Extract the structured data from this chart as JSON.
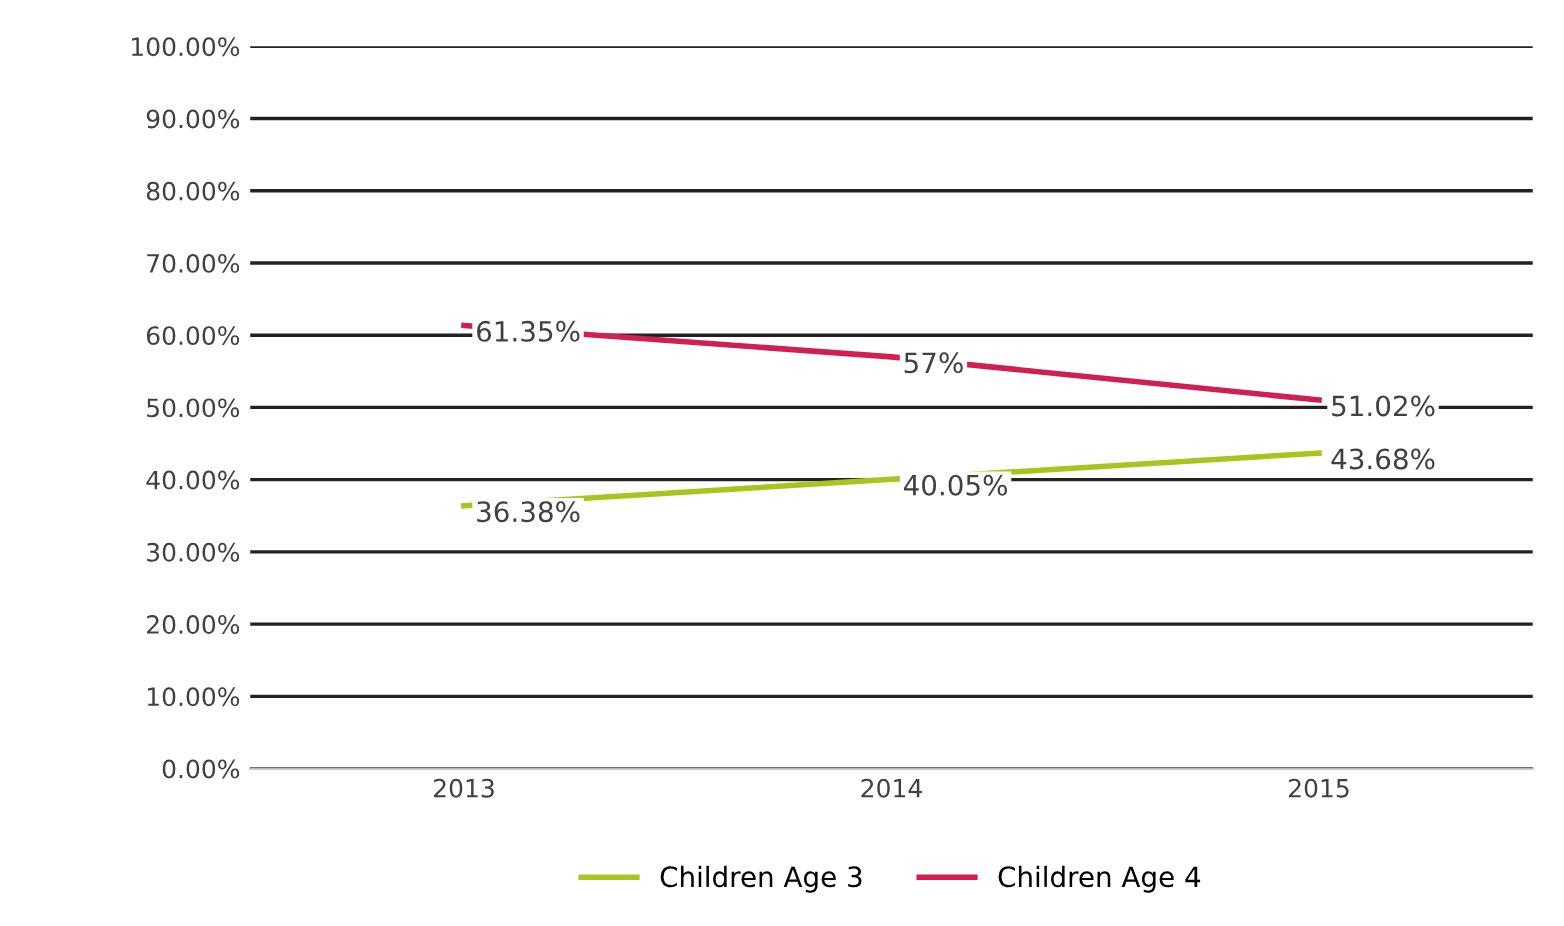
{
  "chart_data": {
    "type": "line",
    "categories": [
      "2013",
      "2014",
      "2015"
    ],
    "series": [
      {
        "name": "Children Age 3",
        "color": "#a9c41c",
        "values": [
          36.38,
          40.05,
          43.68
        ],
        "value_labels": [
          "36.38%",
          "40.05%",
          "43.68%"
        ]
      },
      {
        "name": "Children Age 4",
        "color": "#d0204f",
        "values": [
          61.35,
          57,
          51.02
        ],
        "value_labels": [
          "61.35%",
          "57%",
          "51.02%"
        ]
      }
    ],
    "ylim": [
      0,
      100
    ],
    "yticks": [
      {
        "value": 0,
        "label": "0.00%"
      },
      {
        "value": 10,
        "label": "10.00%"
      },
      {
        "value": 20,
        "label": "20.00%"
      },
      {
        "value": 30,
        "label": "30.00%"
      },
      {
        "value": 40,
        "label": "40.00%"
      },
      {
        "value": 50,
        "label": "50.00%"
      },
      {
        "value": 60,
        "label": "60.00%"
      },
      {
        "value": 70,
        "label": "70.00%"
      },
      {
        "value": 80,
        "label": "80.00%"
      },
      {
        "value": 90,
        "label": "90.00%"
      },
      {
        "value": 100,
        "label": "100.00%"
      }
    ],
    "grid": "y",
    "legend": "bottom",
    "marker": "none",
    "line_style": "solid"
  }
}
